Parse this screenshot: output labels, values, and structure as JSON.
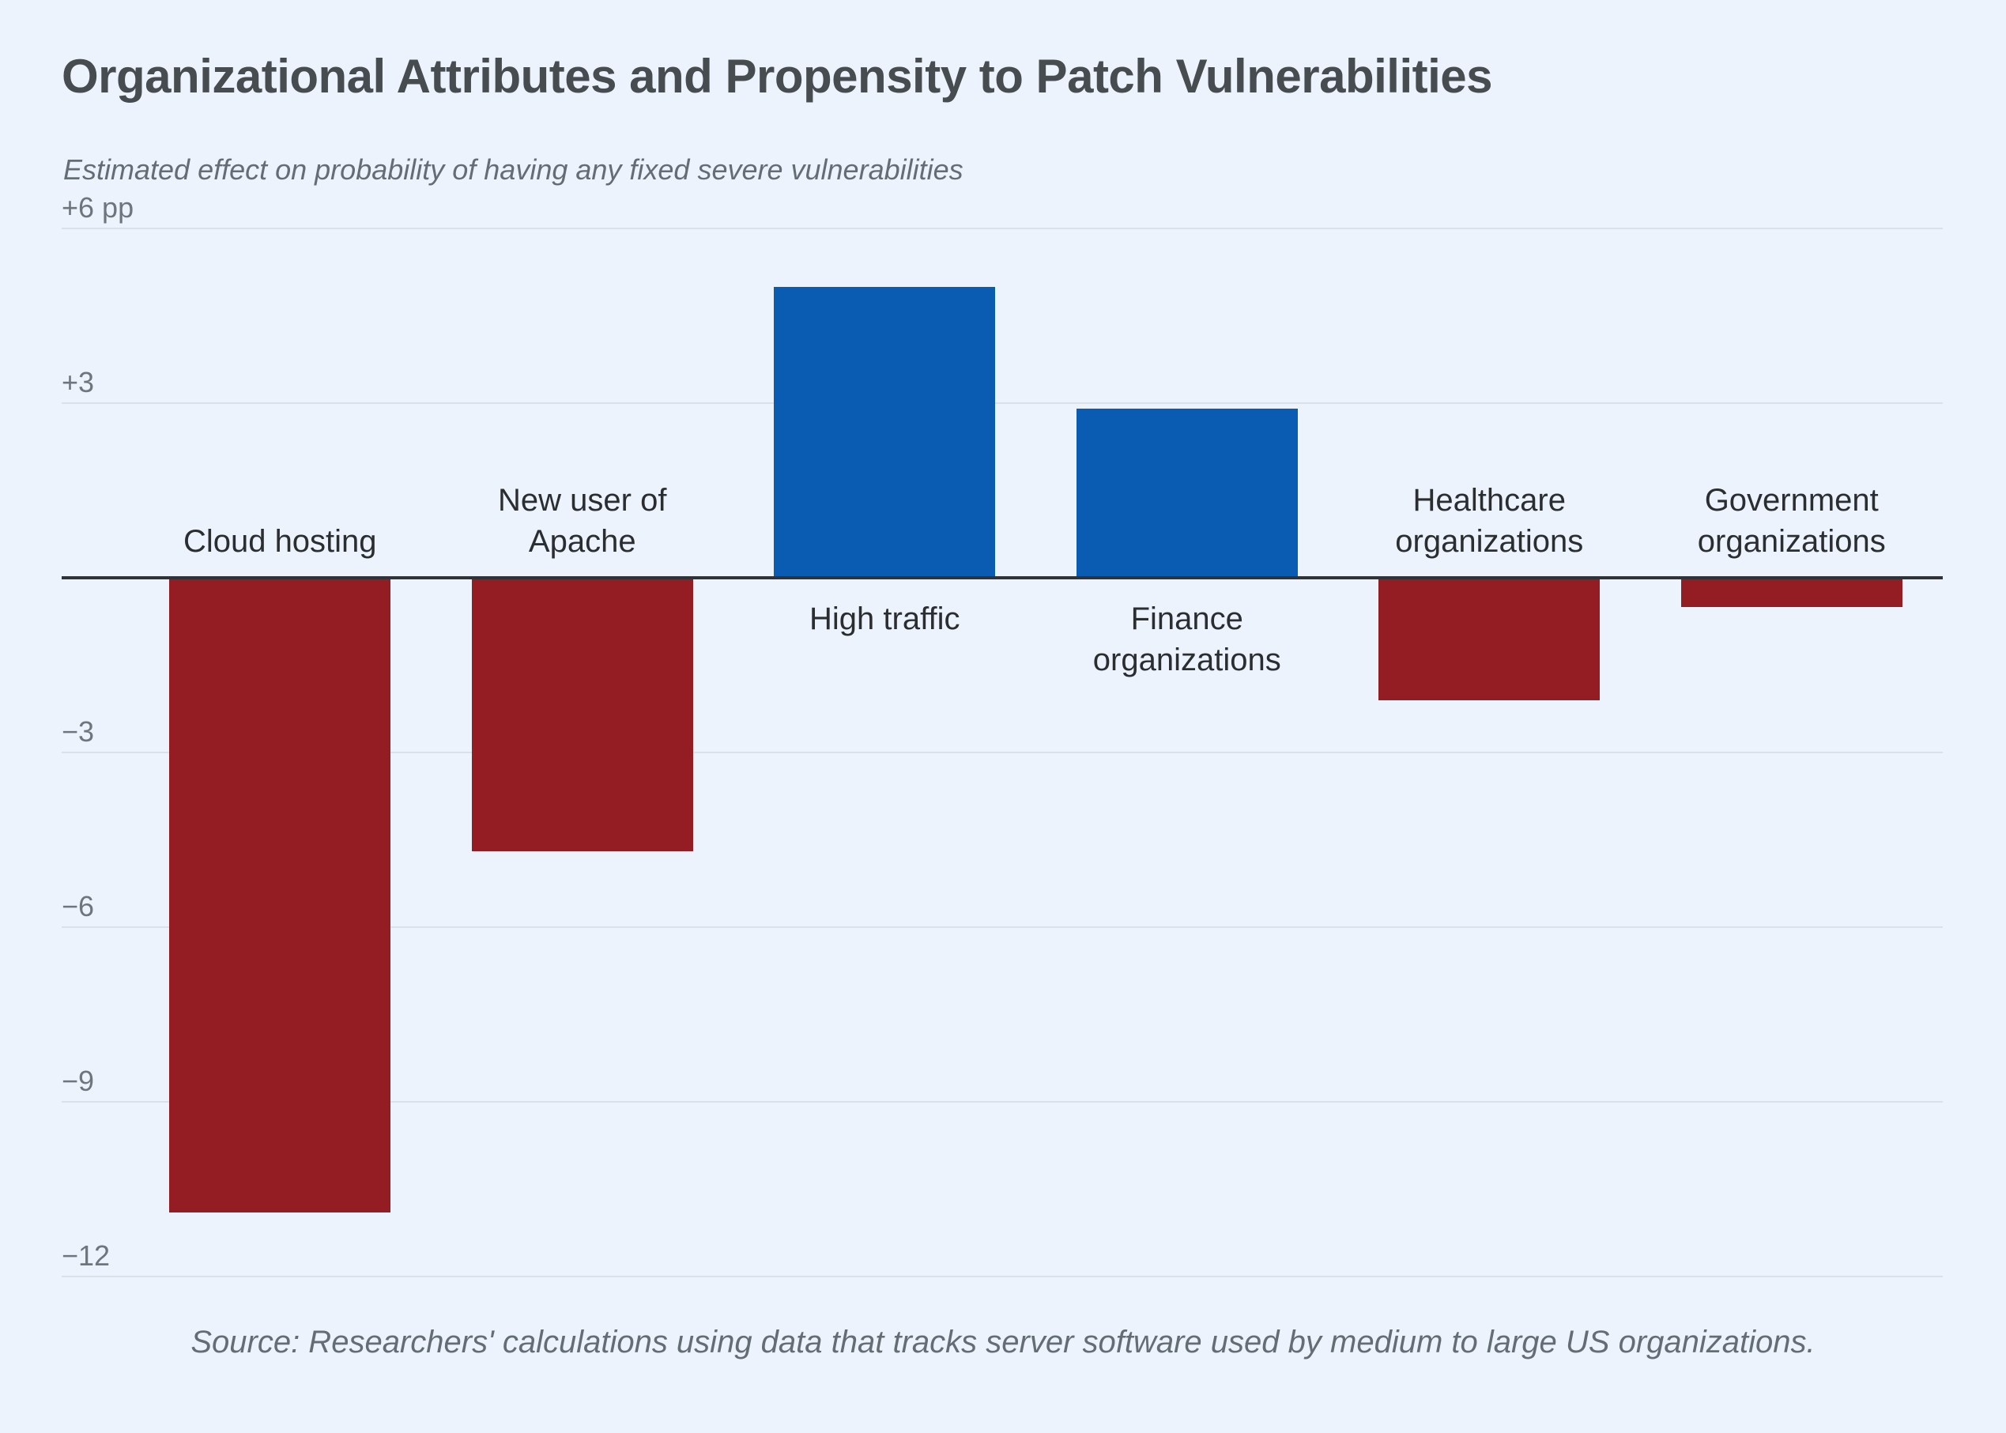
{
  "header": {
    "title": "Organizational Attributes and Propensity to Patch Vulnerabilities",
    "subtitle": "Estimated effect on probability of having any fixed severe vulnerabilities"
  },
  "footer": {
    "source": "Source: Researchers' calculations using data that tracks server software used by medium to large US organizations."
  },
  "chart_data": {
    "type": "bar",
    "title": "Organizational Attributes and Propensity to Patch Vulnerabilities",
    "subtitle": "Estimated effect on probability of having any fixed severe vulnerabilities",
    "unit": "pp",
    "categories": [
      "Cloud hosting",
      "New user of Apache",
      "High traffic",
      "Finance organizations",
      "Healthcare organizations",
      "Government organizations"
    ],
    "category_display": [
      "Cloud hosting",
      "New user of\nApache",
      "High traffic",
      "Finance\norganizations",
      "Healthcare\norganizations",
      "Government\norganizations"
    ],
    "values": [
      -10.9,
      -4.7,
      5.0,
      2.9,
      -2.1,
      -0.5
    ],
    "ylim": [
      -12,
      6
    ],
    "yticks": [
      {
        "value": 6,
        "label": "+6 pp"
      },
      {
        "value": 3,
        "label": "+3"
      },
      {
        "value": 0,
        "label": ""
      },
      {
        "value": -3,
        "label": "−3"
      },
      {
        "value": -6,
        "label": "−6"
      },
      {
        "value": -9,
        "label": "−9"
      },
      {
        "value": -12,
        "label": "−12"
      }
    ],
    "grid": true,
    "legend": "none",
    "xlabel": "",
    "ylabel": "",
    "colors": {
      "background": "#EDF3FC",
      "positive_bar": "#0A5BB2",
      "negative_bar": "#941D24",
      "gridline": "#DCE1E9",
      "zero_line": "#2F3236",
      "title_text": "#474C50",
      "bar_label_text": "#2B2E31",
      "tick_text": "#6E757C",
      "muted_text": "#656D74"
    }
  }
}
